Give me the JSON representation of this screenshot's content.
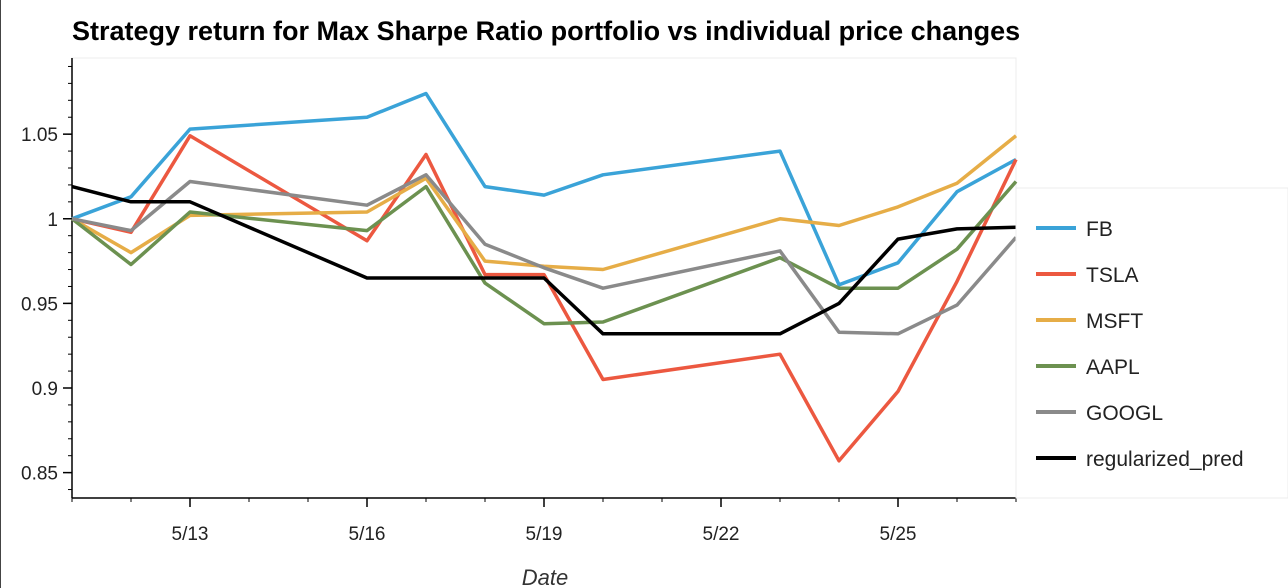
{
  "chart_data": {
    "type": "line",
    "title": "Strategy return for Max Sharpe Ratio portfolio vs individual price changes",
    "xlabel": "Date",
    "ylabel": "",
    "x_tick_labels": [
      "5/13",
      "5/16",
      "5/19",
      "5/22",
      "5/25"
    ],
    "x_tick_days": [
      13,
      16,
      19,
      22,
      25
    ],
    "xlim": [
      11,
      27
    ],
    "y_tick_labels": [
      "0.85",
      "0.9",
      "0.95",
      "1",
      "1.05"
    ],
    "y_ticks": [
      0.85,
      0.9,
      0.95,
      1.0,
      1.05
    ],
    "ylim": [
      0.835,
      1.095
    ],
    "grid": false,
    "legend_position": "right",
    "x_dates": [
      "5/11",
      "5/12",
      "5/13",
      "5/16",
      "5/17",
      "5/18",
      "5/19",
      "5/20",
      "5/23",
      "5/24",
      "5/25",
      "5/26",
      "5/27"
    ],
    "x": [
      11,
      12,
      13,
      16,
      17,
      18,
      19,
      20,
      23,
      24,
      25,
      26,
      27
    ],
    "series": [
      {
        "name": "FB",
        "color": "#3aa3d8",
        "values": [
          1.0,
          1.013,
          1.053,
          1.06,
          1.074,
          1.019,
          1.014,
          1.026,
          1.04,
          0.961,
          0.974,
          1.016,
          1.035
        ]
      },
      {
        "name": "TSLA",
        "color": "#ec5840",
        "values": [
          1.0,
          0.992,
          1.049,
          0.987,
          1.038,
          0.967,
          0.967,
          0.905,
          0.92,
          0.857,
          0.898,
          0.963,
          1.035
        ]
      },
      {
        "name": "MSFT",
        "color": "#e6ad47",
        "values": [
          1.0,
          0.98,
          1.002,
          1.004,
          1.024,
          0.975,
          0.972,
          0.97,
          1.0,
          0.996,
          1.007,
          1.021,
          1.049
        ]
      },
      {
        "name": "AAPL",
        "color": "#6c9150",
        "values": [
          1.0,
          0.973,
          1.004,
          0.993,
          1.019,
          0.962,
          0.938,
          0.939,
          0.977,
          0.959,
          0.959,
          0.982,
          1.022
        ]
      },
      {
        "name": "GOOGL",
        "color": "#8a8a8a",
        "values": [
          1.0,
          0.993,
          1.022,
          1.008,
          1.026,
          0.985,
          0.971,
          0.959,
          0.981,
          0.933,
          0.932,
          0.949,
          0.989
        ]
      },
      {
        "name": "regularized_pred",
        "color": "#000000",
        "values": [
          1.019,
          1.01,
          1.01,
          0.965,
          0.965,
          0.965,
          0.965,
          0.932,
          0.932,
          0.95,
          0.988,
          0.994,
          0.995
        ]
      }
    ]
  }
}
